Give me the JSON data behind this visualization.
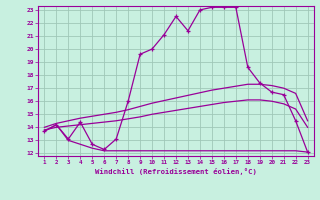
{
  "xlabel": "Windchill (Refroidissement éolien,°C)",
  "bg_color": "#c8f0e0",
  "line_color": "#990099",
  "grid_color": "#a0c8b8",
  "xlim": [
    0.5,
    23.5
  ],
  "ylim": [
    11.8,
    23.3
  ],
  "xticks": [
    1,
    2,
    3,
    4,
    5,
    6,
    7,
    8,
    9,
    10,
    11,
    12,
    13,
    14,
    15,
    16,
    17,
    18,
    19,
    20,
    21,
    22,
    23
  ],
  "yticks": [
    12,
    13,
    14,
    15,
    16,
    17,
    18,
    19,
    20,
    21,
    22,
    23
  ],
  "series": {
    "temperature": {
      "x": [
        1,
        2,
        3,
        4,
        5,
        6,
        7,
        8,
        9,
        10,
        11,
        12,
        13,
        14,
        15,
        16,
        17,
        18,
        19,
        20,
        21,
        22,
        23
      ],
      "y": [
        13.7,
        14.2,
        13.1,
        14.4,
        12.7,
        12.3,
        13.1,
        16.0,
        19.6,
        20.0,
        21.1,
        22.5,
        21.4,
        23.0,
        23.2,
        23.2,
        23.2,
        18.6,
        17.4,
        16.7,
        16.5,
        14.5,
        12.1
      ]
    },
    "regression_high": {
      "x": [
        1,
        2,
        3,
        4,
        5,
        6,
        7,
        8,
        9,
        10,
        11,
        12,
        13,
        14,
        15,
        16,
        17,
        18,
        19,
        20,
        21,
        22,
        23
      ],
      "y": [
        14.0,
        14.3,
        14.5,
        14.7,
        14.85,
        15.0,
        15.15,
        15.35,
        15.6,
        15.85,
        16.05,
        16.25,
        16.45,
        16.65,
        16.85,
        17.0,
        17.15,
        17.3,
        17.3,
        17.2,
        17.0,
        16.6,
        14.5
      ]
    },
    "regression_low": {
      "x": [
        1,
        2,
        3,
        4,
        5,
        6,
        7,
        8,
        9,
        10,
        11,
        12,
        13,
        14,
        15,
        16,
        17,
        18,
        19,
        20,
        21,
        22,
        23
      ],
      "y": [
        13.8,
        14.0,
        14.1,
        14.2,
        14.3,
        14.4,
        14.5,
        14.65,
        14.8,
        15.0,
        15.15,
        15.3,
        15.45,
        15.6,
        15.75,
        15.9,
        16.0,
        16.1,
        16.1,
        16.0,
        15.8,
        15.4,
        14.0
      ]
    },
    "windchill": {
      "x": [
        1,
        2,
        3,
        4,
        5,
        6,
        7,
        8,
        9,
        10,
        11,
        12,
        13,
        14,
        15,
        16,
        17,
        18,
        19,
        20,
        21,
        22,
        23
      ],
      "y": [
        13.7,
        14.2,
        13.0,
        12.7,
        12.4,
        12.2,
        12.2,
        12.2,
        12.2,
        12.2,
        12.2,
        12.2,
        12.2,
        12.2,
        12.2,
        12.2,
        12.2,
        12.2,
        12.2,
        12.2,
        12.2,
        12.2,
        12.1
      ]
    }
  }
}
